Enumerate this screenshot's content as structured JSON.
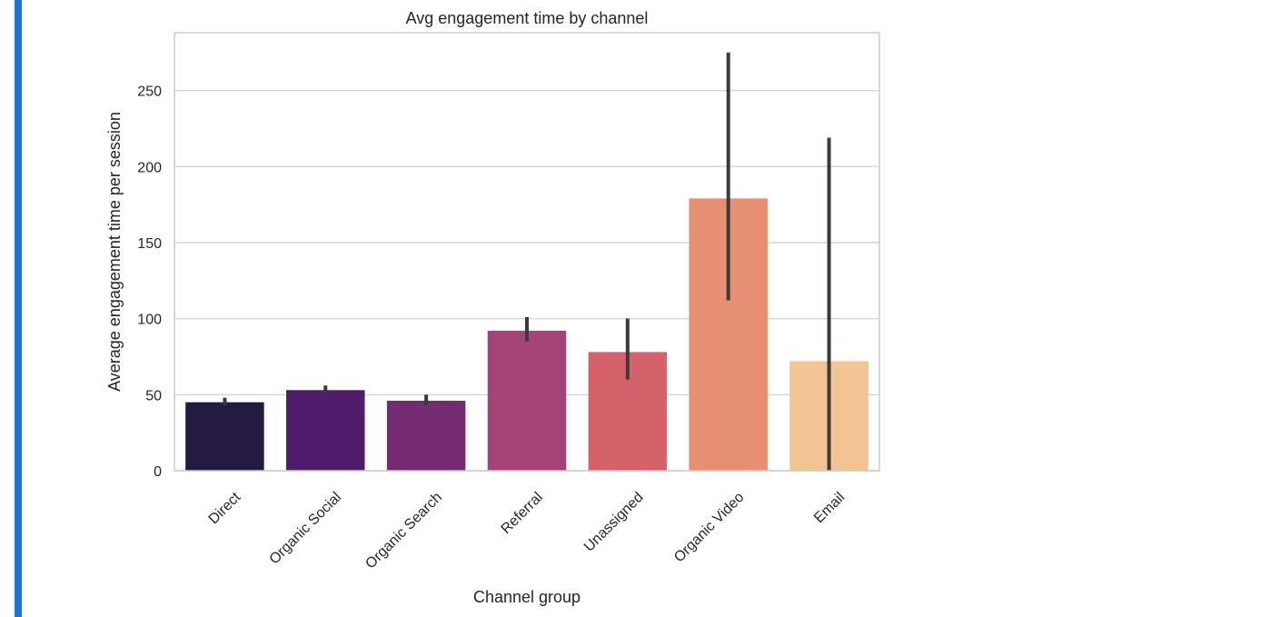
{
  "chart_data": {
    "type": "bar",
    "title": "Avg engagement time by channel",
    "xlabel": "Channel group",
    "ylabel": "Average engagement time per session",
    "categories": [
      "Direct",
      "Organic Social",
      "Organic Search",
      "Referral",
      "Unassigned",
      "Organic Video",
      "Email"
    ],
    "values": [
      45,
      53,
      46,
      92,
      78,
      179,
      72
    ],
    "error_low": [
      43,
      51,
      43,
      85,
      60,
      112,
      0
    ],
    "error_high": [
      48,
      56,
      50,
      101,
      100,
      275,
      219
    ],
    "colors": [
      "#221a41",
      "#4f1c6c",
      "#752b71",
      "#a44375",
      "#d5616d",
      "#e68f71",
      "#f1c491"
    ],
    "error_color": "#3b3b3b",
    "ylim": [
      0,
      288
    ],
    "yticks": [
      0,
      50,
      100,
      150,
      200,
      250
    ],
    "grid": true,
    "legend": "none"
  },
  "cell": {
    "accent_color": "#1976d2"
  }
}
